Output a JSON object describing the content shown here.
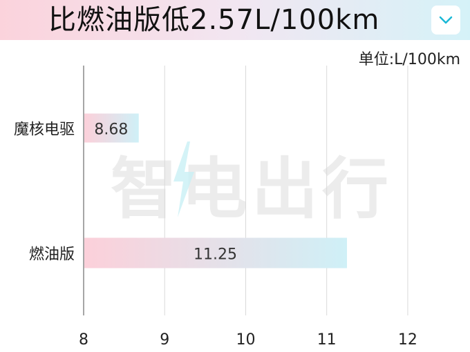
{
  "header": {
    "title": "比燃油版低2.57L/100km",
    "dropdown_icon": "chevron-down-icon"
  },
  "watermark": {
    "text": "智电出行"
  },
  "colors": {
    "bar_start": "#fcd0da",
    "bar_end": "#cff0f7",
    "accent": "#1ab8d6",
    "grid": "#d9d9d9",
    "axis": "#888888"
  },
  "chart_data": {
    "type": "bar",
    "orientation": "horizontal",
    "title": "比燃油版低2.57L/100km",
    "unit_label": "单位:L/100km",
    "categories": [
      "魔核电驱",
      "燃油版"
    ],
    "values": [
      8.68,
      11.25
    ],
    "data_labels": [
      "8.68",
      "11.25"
    ],
    "xlim": [
      8,
      12.7
    ],
    "ticks": [
      8,
      9,
      10,
      11,
      12
    ],
    "tick_labels": [
      "8",
      "9",
      "10",
      "11",
      "12"
    ],
    "grid": true
  }
}
